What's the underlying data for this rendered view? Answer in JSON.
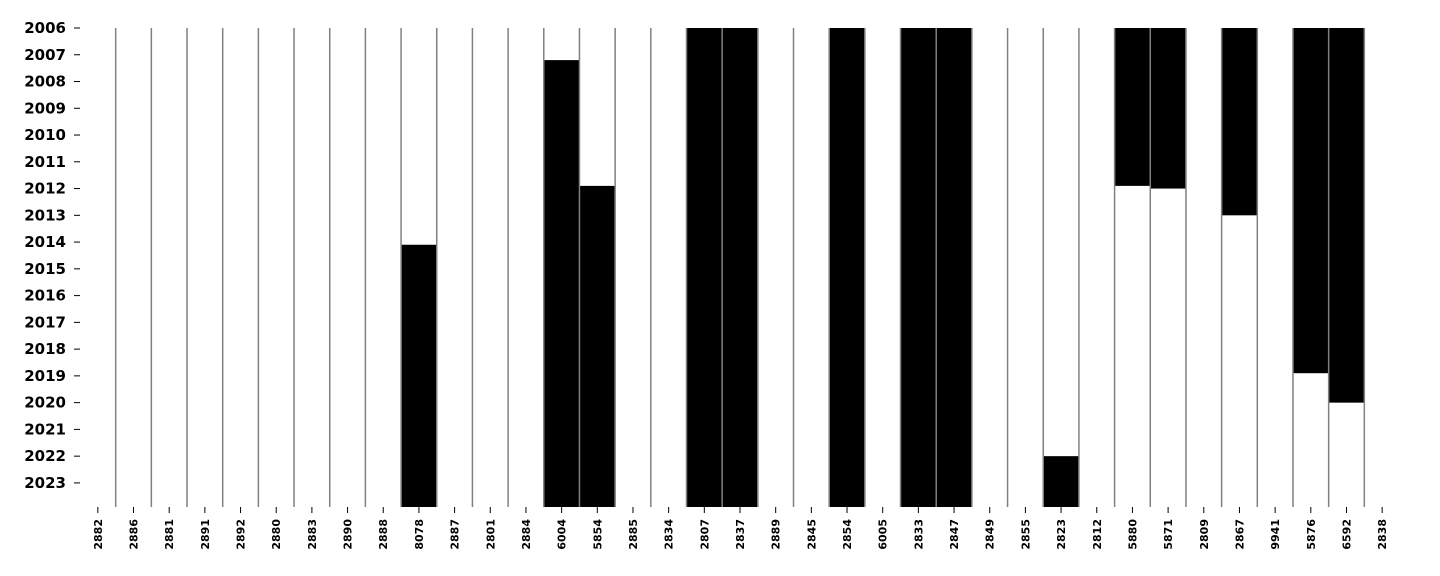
{
  "chart_data": {
    "type": "heatmap",
    "title": "",
    "xlabel": "",
    "ylabel": "",
    "grid": false,
    "legend": "none",
    "colors": {
      "filled": "#000000",
      "empty": "#ffffff",
      "divider": "#808080"
    },
    "y_categories": [
      "2006",
      "2007",
      "2008",
      "2009",
      "2010",
      "2011",
      "2012",
      "2013",
      "2014",
      "2015",
      "2016",
      "2017",
      "2018",
      "2019",
      "2020",
      "2021",
      "2022",
      "2023"
    ],
    "x_categories": [
      "2882",
      "2886",
      "2881",
      "2891",
      "2892",
      "2880",
      "2883",
      "2890",
      "2888",
      "8078",
      "2887",
      "2801",
      "2884",
      "6004",
      "5854",
      "2885",
      "2834",
      "2807",
      "2837",
      "2889",
      "2845",
      "2854",
      "6005",
      "2833",
      "2847",
      "2849",
      "2855",
      "2823",
      "2812",
      "5880",
      "5871",
      "2809",
      "2867",
      "9941",
      "5876",
      "6592",
      "2838"
    ],
    "ylim": [
      2006,
      2023.9
    ],
    "active_spans": [
      {
        "column": "8078",
        "from": 2014.1,
        "to": 2023.9
      },
      {
        "column": "6004",
        "from": 2007.2,
        "to": 2023.9
      },
      {
        "column": "5854",
        "from": 2011.9,
        "to": 2023.9
      },
      {
        "column": "2807",
        "from": 2006.0,
        "to": 2023.9
      },
      {
        "column": "2837",
        "from": 2006.0,
        "to": 2023.9
      },
      {
        "column": "2854",
        "from": 2006.0,
        "to": 2023.9
      },
      {
        "column": "2833",
        "from": 2006.0,
        "to": 2023.9
      },
      {
        "column": "2847",
        "from": 2006.0,
        "to": 2023.9
      },
      {
        "column": "2823",
        "from": 2022.0,
        "to": 2023.9
      },
      {
        "column": "5880",
        "from": 2006.0,
        "to": 2011.9
      },
      {
        "column": "5871",
        "from": 2006.0,
        "to": 2012.0
      },
      {
        "column": "2867",
        "from": 2006.0,
        "to": 2013.0
      },
      {
        "column": "5876",
        "from": 2006.0,
        "to": 2018.9
      },
      {
        "column": "6592",
        "from": 2006.0,
        "to": 2020.0
      }
    ]
  }
}
